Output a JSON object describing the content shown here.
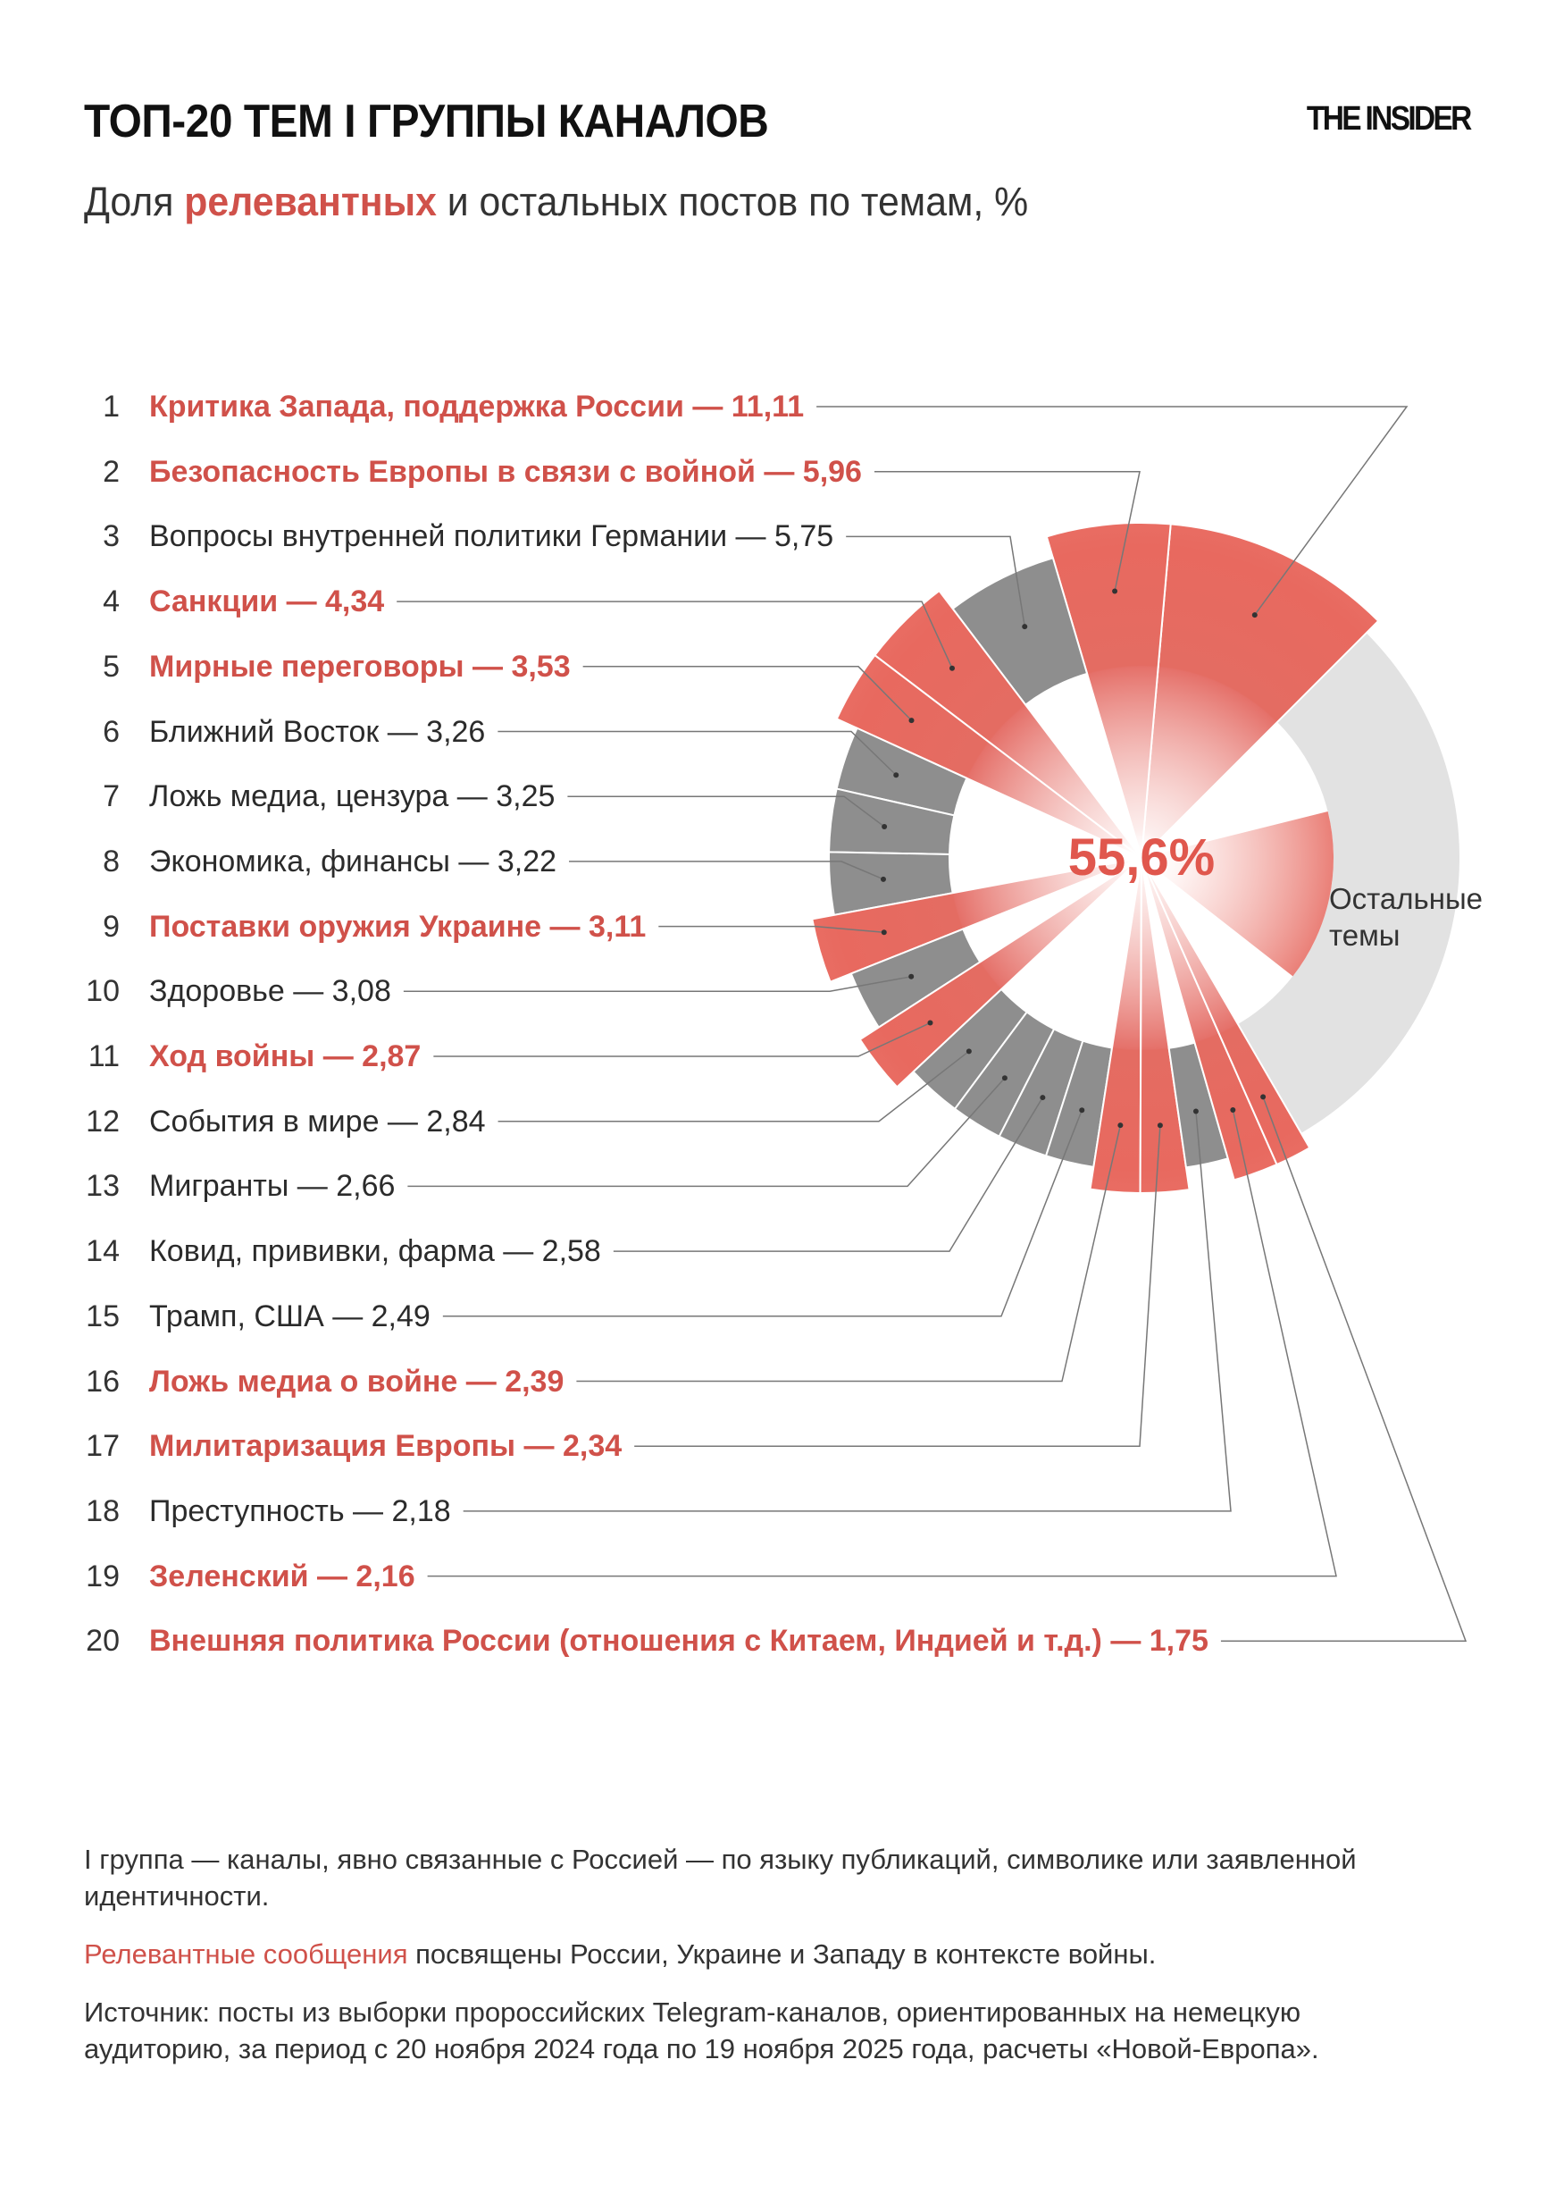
{
  "header": {
    "title": "ТОП-20 ТЕМ I ГРУППЫ КАНАЛОВ",
    "logo": "THE INSIDER",
    "subtitle_pre": "Доля",
    "subtitle_highlight": "релевантных",
    "subtitle_post": "и остальных постов по темам, %"
  },
  "chart_data": {
    "type": "pie",
    "subtype": "radial bar / donut with exploded relevant segments",
    "center_label": "55,6%",
    "rest_label": "Остальные темы",
    "rest_share": 29.13,
    "colors": {
      "relevant": "#e8695f",
      "other": "#8e8e8e",
      "rest": "#e2e2e2",
      "relevant_text": "#d0514a"
    },
    "items": [
      {
        "rank": "1",
        "label": "Критика Запада, поддержка России — 11,11",
        "value": 11.11,
        "relevant": true
      },
      {
        "rank": "2",
        "label": "Безопасность Европы в связи с войной — 5,96",
        "value": 5.96,
        "relevant": true
      },
      {
        "rank": "3",
        "label": "Вопросы внутренней политики Германии — 5,75",
        "value": 5.75,
        "relevant": false
      },
      {
        "rank": "4",
        "label": "Санкции — 4,34",
        "value": 4.34,
        "relevant": true
      },
      {
        "rank": "5",
        "label": "Мирные переговоры — 3,53",
        "value": 3.53,
        "relevant": true
      },
      {
        "rank": "6",
        "label": "Ближний Восток — 3,26",
        "value": 3.26,
        "relevant": false
      },
      {
        "rank": "7",
        "label": "Ложь медиа, цензура — 3,25",
        "value": 3.25,
        "relevant": false
      },
      {
        "rank": "8",
        "label": "Экономика, финансы — 3,22",
        "value": 3.22,
        "relevant": false
      },
      {
        "rank": "9",
        "label": "Поставки оружия Украине — 3,11",
        "value": 3.11,
        "relevant": true
      },
      {
        "rank": "10",
        "label": "Здоровье — 3,08",
        "value": 3.08,
        "relevant": false
      },
      {
        "rank": "11",
        "label": "Ход войны — 2,87",
        "value": 2.87,
        "relevant": true
      },
      {
        "rank": "12",
        "label": "События в мире — 2,84",
        "value": 2.84,
        "relevant": false
      },
      {
        "rank": "13",
        "label": "Мигранты — 2,66",
        "value": 2.66,
        "relevant": false
      },
      {
        "rank": "14",
        "label": "Ковид, прививки, фарма — 2,58",
        "value": 2.58,
        "relevant": false
      },
      {
        "rank": "15",
        "label": "Трамп, США — 2,49",
        "value": 2.49,
        "relevant": false
      },
      {
        "rank": "16",
        "label": "Ложь медиа о войне — 2,39",
        "value": 2.39,
        "relevant": true
      },
      {
        "rank": "17",
        "label": "Милитаризация Европы — 2,34",
        "value": 2.34,
        "relevant": true
      },
      {
        "rank": "18",
        "label": "Преступность — 2,18",
        "value": 2.18,
        "relevant": false
      },
      {
        "rank": "19",
        "label": "Зеленский — 2,16",
        "value": 2.16,
        "relevant": true
      },
      {
        "rank": "20",
        "label": "Внешняя политика России (отношения с Китаем, Индией и т.д.) — 1,75",
        "value": 1.75,
        "relevant": true
      }
    ]
  },
  "footer": {
    "note1": "I группа — каналы, явно связанные с Россией — по языку публикаций, символике или заявленной идентичности.",
    "note2_highlight": "Релевантные сообщения",
    "note2_rest": "посвящены России, Украине и Западу в контексте войны.",
    "source": "Источник: посты из выборки пророссийских Telegram-каналов, ориентированных на немецкую аудиторию, за период с 20 ноября 2024 года по 19 ноября 2025 года, расчеты «Новой-Европа»."
  }
}
